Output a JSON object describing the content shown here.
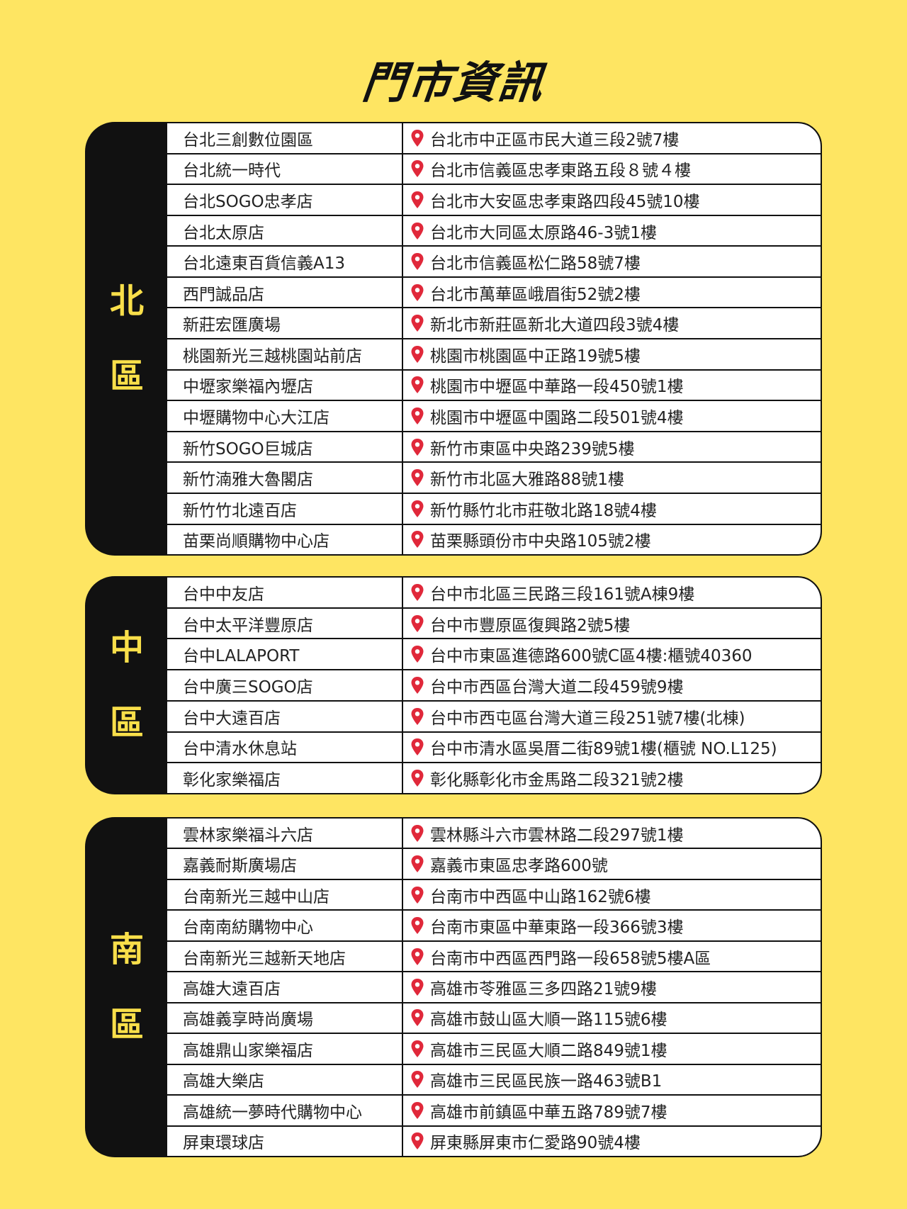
{
  "title": "門市資訊",
  "colors": {
    "background": "#FEE562",
    "region_label": "#F9DF4A",
    "pin": "#E0283A",
    "panel": "#111111"
  },
  "regions": [
    {
      "label": [
        "北",
        "區"
      ],
      "stores": [
        {
          "name": "台北三創數位園區",
          "address": "台北市中正區市民大道三段2號7樓"
        },
        {
          "name": "台北統一時代",
          "address": "台北市信義區忠孝東路五段８號４樓"
        },
        {
          "name": "台北SOGO忠孝店",
          "address": "台北市大安區忠孝東路四段45號10樓"
        },
        {
          "name": "台北太原店",
          "address": "台北市大同區太原路46-3號1樓"
        },
        {
          "name": "台北遠東百貨信義A13",
          "address": "台北市信義區松仁路58號7樓"
        },
        {
          "name": "西門誠品店",
          "address": "台北市萬華區峨眉街52號2樓"
        },
        {
          "name": "新莊宏匯廣場",
          "address": "新北市新莊區新北大道四段3號4樓"
        },
        {
          "name": "桃園新光三越桃園站前店",
          "address": "桃園市桃園區中正路19號5樓"
        },
        {
          "name": "中壢家樂福內壢店",
          "address": "桃園市中壢區中華路一段450號1樓"
        },
        {
          "name": "中壢購物中心大江店",
          "address": "桃園市中壢區中園路二段501號4樓"
        },
        {
          "name": "新竹SOGO巨城店",
          "address": "新竹市東區中央路239號5樓"
        },
        {
          "name": "新竹湳雅大魯閣店",
          "address": "新竹市北區大雅路88號1樓"
        },
        {
          "name": "新竹竹北遠百店",
          "address": "新竹縣竹北市莊敬北路18號4樓"
        },
        {
          "name": "苗栗尚順購物中心店",
          "address": "苗栗縣頭份市中央路105號2樓"
        }
      ]
    },
    {
      "label": [
        "中",
        "區"
      ],
      "stores": [
        {
          "name": "台中中友店",
          "address": "台中市北區三民路三段161號A棟9樓"
        },
        {
          "name": "台中太平洋豐原店",
          "address": "台中市豐原區復興路2號5樓"
        },
        {
          "name": "台中LALAPORT",
          "address": "台中市東區進德路600號C區4樓:櫃號40360"
        },
        {
          "name": "台中廣三SOGO店",
          "address": "台中市西區台灣大道二段459號9樓"
        },
        {
          "name": "台中大遠百店",
          "address": "台中市西屯區台灣大道三段251號7樓(北棟)"
        },
        {
          "name": "台中清水休息站",
          "address": "台中市清水區吳厝二街89號1樓(櫃號 NO.L125)"
        },
        {
          "name": "彰化家樂福店",
          "address": "彰化縣彰化市金馬路二段321號2樓"
        }
      ]
    },
    {
      "label": [
        "南",
        "區"
      ],
      "stores": [
        {
          "name": "雲林家樂福斗六店",
          "address": "雲林縣斗六市雲林路二段297號1樓"
        },
        {
          "name": "嘉義耐斯廣場店",
          "address": "嘉義市東區忠孝路600號"
        },
        {
          "name": "台南新光三越中山店",
          "address": "台南市中西區中山路162號6樓"
        },
        {
          "name": "台南南紡購物中心",
          "address": "台南市東區中華東路一段366號3樓"
        },
        {
          "name": "台南新光三越新天地店",
          "address": "台南市中西區西門路一段658號5樓A區"
        },
        {
          "name": "高雄大遠百店",
          "address": "高雄市苓雅區三多四路21號9樓"
        },
        {
          "name": "高雄義享時尚廣場",
          "address": "高雄市鼓山區大順一路115號6樓"
        },
        {
          "name": "高雄鼎山家樂福店",
          "address": "高雄市三民區大順二路849號1樓"
        },
        {
          "name": "高雄大樂店",
          "address": "高雄市三民區民族一路463號B1"
        },
        {
          "name": "高雄統一夢時代購物中心",
          "address": "高雄市前鎮區中華五路789號7樓"
        },
        {
          "name": "屏東環球店",
          "address": "屏東縣屏東市仁愛路90號4樓"
        }
      ]
    }
  ]
}
